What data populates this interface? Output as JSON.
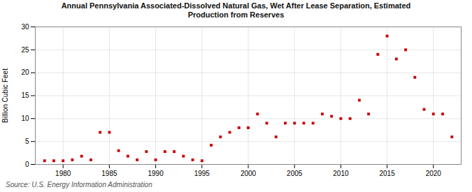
{
  "chart_data": {
    "type": "scatter",
    "title": "Annual Pennsylvania Associated-Dissolved Natural Gas, Wet After Lease Separation, Estimated\nProduction from Reserves",
    "ylabel": "Billion Cubic Feet",
    "caption": "Source: U.S. Energy Information Administration",
    "color": "#cc0000",
    "marker": "square",
    "x": [
      1978,
      1979,
      1980,
      1981,
      1982,
      1983,
      1984,
      1985,
      1986,
      1987,
      1988,
      1989,
      1990,
      1991,
      1992,
      1993,
      1994,
      1995,
      1996,
      1997,
      1998,
      1999,
      2000,
      2001,
      2002,
      2003,
      2004,
      2005,
      2006,
      2007,
      2008,
      2009,
      2010,
      2011,
      2012,
      2013,
      2014,
      2015,
      2016,
      2017,
      2018,
      2019,
      2020,
      2021,
      2022
    ],
    "values": [
      0.8,
      0.8,
      0.8,
      1.0,
      1.8,
      1.0,
      7.0,
      7.0,
      3.0,
      1.8,
      1.0,
      2.8,
      1.0,
      2.8,
      2.8,
      1.8,
      1.0,
      0.8,
      4.2,
      6.0,
      7.0,
      8.0,
      8.0,
      11.0,
      9.0,
      6.0,
      9.0,
      9.0,
      9.0,
      9.0,
      11.0,
      10.5,
      10.0,
      10.0,
      14.0,
      11.0,
      24.0,
      28.0,
      23.0,
      25.0,
      19.0,
      12.0,
      11.0,
      11.0,
      6.0
    ],
    "xlim": [
      1977,
      2023
    ],
    "ylim": [
      0,
      30
    ],
    "xticks": [
      1980,
      1985,
      1990,
      1995,
      2000,
      2005,
      2010,
      2015,
      2020
    ],
    "yticks": [
      0,
      5,
      10,
      15,
      20,
      25,
      30
    ],
    "grid": true
  }
}
